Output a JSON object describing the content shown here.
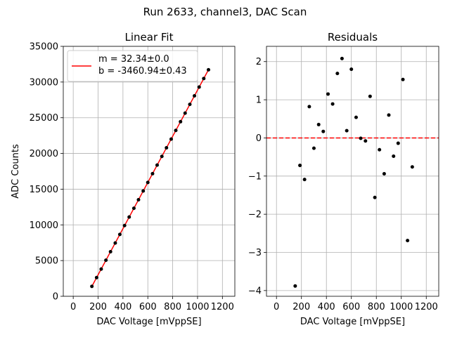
{
  "figure": {
    "suptitle": "Run 2633, channel3, DAC Scan"
  },
  "chart_data": [
    {
      "type": "scatter",
      "title": "Linear Fit",
      "xlabel": "DAC Voltage [mVppSE]",
      "ylabel": "ADC Counts",
      "xlim": [
        -80,
        1300
      ],
      "ylim": [
        0,
        35000
      ],
      "xticks": [
        0,
        200,
        400,
        600,
        800,
        1000,
        1200
      ],
      "yticks": [
        0,
        5000,
        10000,
        15000,
        20000,
        25000,
        30000,
        35000
      ],
      "grid": true,
      "legend": {
        "placement": "upper-left",
        "lines": [
          "m = 32.34±0.0",
          "b = -3460.94±0.43"
        ]
      },
      "fit_line": {
        "slope": 32.34,
        "intercept": -3460.94,
        "color": "#ff0000",
        "x_range": [
          150,
          1090
        ]
      },
      "series": [
        {
          "kind": "points",
          "color": "#000000",
          "x": [
            150,
            188,
            225,
            263,
            300,
            338,
            375,
            413,
            450,
            488,
            525,
            563,
            600,
            638,
            675,
            713,
            750,
            788,
            825,
            863,
            900,
            938,
            975,
            1013,
            1050,
            1088
          ],
          "y": [
            1387,
            2619,
            3807,
            5047,
            6240,
            7464,
            8664,
            9902,
            11095,
            12327,
            13517,
            14747,
            15943,
            17165,
            18369,
            19592,
            20793,
            22009,
            23229,
            24450,
            25646,
            26874,
            28071,
            29301,
            30495,
            31717
          ]
        }
      ]
    },
    {
      "type": "scatter",
      "title": "Residuals",
      "xlabel": "DAC Voltage [mVppSE]",
      "ylabel": "",
      "xlim": [
        -80,
        1300
      ],
      "ylim": [
        -4.15,
        2.4
      ],
      "xticks": [
        0,
        200,
        400,
        600,
        800,
        1000,
        1200
      ],
      "yticks": [
        -4,
        -3,
        -2,
        -1,
        0,
        1,
        2
      ],
      "grid": true,
      "zero_line": {
        "y": 0,
        "color": "#ff0000",
        "style": "dashed"
      },
      "series": [
        {
          "kind": "points",
          "color": "#000000",
          "x": [
            150,
            188,
            225,
            263,
            300,
            338,
            375,
            413,
            450,
            488,
            525,
            563,
            600,
            638,
            675,
            713,
            750,
            788,
            825,
            863,
            900,
            938,
            975,
            1013,
            1050,
            1088
          ],
          "y": [
            -3.88,
            -0.72,
            -1.09,
            0.82,
            -0.27,
            0.35,
            0.17,
            1.15,
            0.89,
            1.69,
            2.08,
            0.19,
            1.8,
            0.54,
            -0.01,
            -0.08,
            1.09,
            -1.56,
            -0.31,
            -0.94,
            0.6,
            -0.48,
            -0.14,
            1.53,
            -2.69,
            -0.76
          ]
        }
      ]
    }
  ]
}
